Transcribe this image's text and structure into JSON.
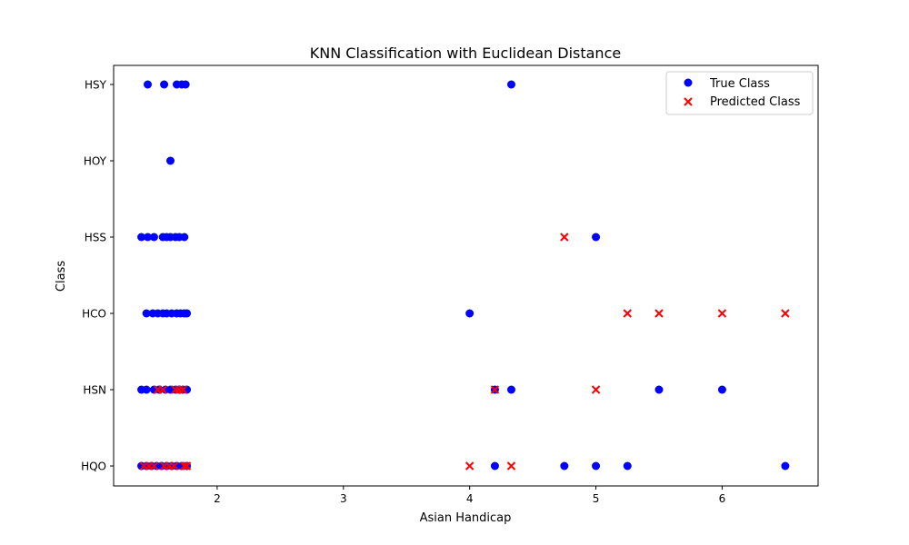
{
  "chart_data": {
    "type": "scatter",
    "title": "KNN Classification with Euclidean Distance",
    "xlabel": "Asian Handicap",
    "ylabel": "Class",
    "xlim": [
      1.18,
      6.76
    ],
    "x_ticks": [
      2,
      3,
      4,
      5,
      6
    ],
    "categories": [
      "HQO",
      "HSN",
      "HCO ",
      "HSS",
      "HOY",
      "HSY"
    ],
    "grid": false,
    "legend_position": "top-right",
    "series": [
      {
        "name": "True Class",
        "marker": "circle",
        "color": "#0000ff",
        "points": [
          {
            "x": 1.45,
            "y": "HSY"
          },
          {
            "x": 1.58,
            "y": "HSY"
          },
          {
            "x": 1.68,
            "y": "HSY"
          },
          {
            "x": 1.72,
            "y": "HSY"
          },
          {
            "x": 1.75,
            "y": "HSY"
          },
          {
            "x": 4.33,
            "y": "HSY"
          },
          {
            "x": 1.63,
            "y": "HOY"
          },
          {
            "x": 1.4,
            "y": "HSS"
          },
          {
            "x": 1.45,
            "y": "HSS"
          },
          {
            "x": 1.5,
            "y": "HSS"
          },
          {
            "x": 1.57,
            "y": "HSS"
          },
          {
            "x": 1.6,
            "y": "HSS"
          },
          {
            "x": 1.63,
            "y": "HSS"
          },
          {
            "x": 1.67,
            "y": "HSS"
          },
          {
            "x": 1.7,
            "y": "HSS"
          },
          {
            "x": 1.74,
            "y": "HSS"
          },
          {
            "x": 5.0,
            "y": "HSS"
          },
          {
            "x": 1.44,
            "y": "HCO "
          },
          {
            "x": 1.49,
            "y": "HCO "
          },
          {
            "x": 1.53,
            "y": "HCO "
          },
          {
            "x": 1.57,
            "y": "HCO "
          },
          {
            "x": 1.6,
            "y": "HCO "
          },
          {
            "x": 1.64,
            "y": "HCO "
          },
          {
            "x": 1.68,
            "y": "HCO "
          },
          {
            "x": 1.71,
            "y": "HCO "
          },
          {
            "x": 1.74,
            "y": "HCO "
          },
          {
            "x": 1.76,
            "y": "HCO "
          },
          {
            "x": 4.0,
            "y": "HCO "
          },
          {
            "x": 1.4,
            "y": "HSN"
          },
          {
            "x": 1.44,
            "y": "HSN"
          },
          {
            "x": 1.5,
            "y": "HSN"
          },
          {
            "x": 1.54,
            "y": "HSN"
          },
          {
            "x": 1.59,
            "y": "HSN"
          },
          {
            "x": 1.63,
            "y": "HSN"
          },
          {
            "x": 1.67,
            "y": "HSN"
          },
          {
            "x": 1.7,
            "y": "HSN"
          },
          {
            "x": 1.73,
            "y": "HSN"
          },
          {
            "x": 1.76,
            "y": "HSN"
          },
          {
            "x": 4.2,
            "y": "HSN"
          },
          {
            "x": 4.33,
            "y": "HSN"
          },
          {
            "x": 5.5,
            "y": "HSN"
          },
          {
            "x": 6.0,
            "y": "HSN"
          },
          {
            "x": 1.4,
            "y": "HQO"
          },
          {
            "x": 1.44,
            "y": "HQO"
          },
          {
            "x": 1.48,
            "y": "HQO"
          },
          {
            "x": 1.52,
            "y": "HQO"
          },
          {
            "x": 1.56,
            "y": "HQO"
          },
          {
            "x": 1.6,
            "y": "HQO"
          },
          {
            "x": 1.64,
            "y": "HQO"
          },
          {
            "x": 1.68,
            "y": "HQO"
          },
          {
            "x": 1.72,
            "y": "HQO"
          },
          {
            "x": 1.76,
            "y": "HQO"
          },
          {
            "x": 4.2,
            "y": "HQO"
          },
          {
            "x": 4.75,
            "y": "HQO"
          },
          {
            "x": 5.0,
            "y": "HQO"
          },
          {
            "x": 5.25,
            "y": "HQO"
          },
          {
            "x": 6.5,
            "y": "HQO"
          }
        ]
      },
      {
        "name": "Predicted Class",
        "marker": "x",
        "color": "#ff0000",
        "points": [
          {
            "x": 4.75,
            "y": "HSS"
          },
          {
            "x": 5.25,
            "y": "HCO "
          },
          {
            "x": 5.5,
            "y": "HCO "
          },
          {
            "x": 6.0,
            "y": "HCO "
          },
          {
            "x": 6.5,
            "y": "HCO "
          },
          {
            "x": 1.53,
            "y": "HSN"
          },
          {
            "x": 1.57,
            "y": "HSN"
          },
          {
            "x": 1.67,
            "y": "HSN"
          },
          {
            "x": 1.7,
            "y": "HSN"
          },
          {
            "x": 1.73,
            "y": "HSN"
          },
          {
            "x": 4.2,
            "y": "HSN"
          },
          {
            "x": 5.0,
            "y": "HSN"
          },
          {
            "x": 1.42,
            "y": "HQO"
          },
          {
            "x": 1.46,
            "y": "HQO"
          },
          {
            "x": 1.5,
            "y": "HQO"
          },
          {
            "x": 1.58,
            "y": "HQO"
          },
          {
            "x": 1.62,
            "y": "HQO"
          },
          {
            "x": 1.66,
            "y": "HQO"
          },
          {
            "x": 1.74,
            "y": "HQO"
          },
          {
            "x": 1.76,
            "y": "HQO"
          },
          {
            "x": 4.0,
            "y": "HQO"
          },
          {
            "x": 4.33,
            "y": "HQO"
          }
        ]
      }
    ]
  }
}
